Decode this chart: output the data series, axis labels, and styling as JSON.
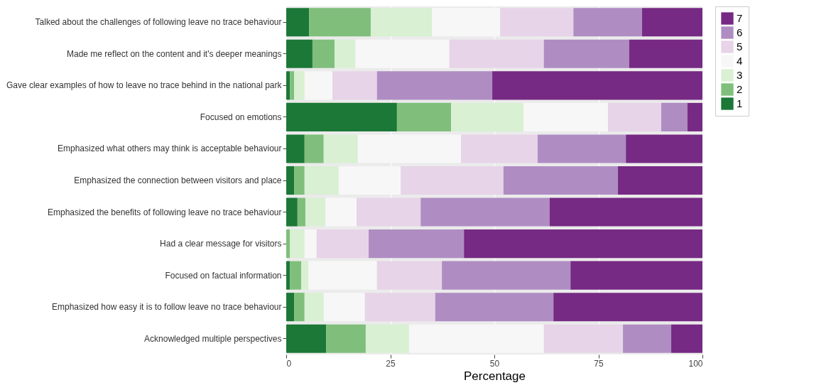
{
  "chart_data": {
    "type": "bar",
    "orientation": "horizontal",
    "stacked": true,
    "xlabel": "Percentage",
    "categories": [
      "Talked about the challenges of following leave no trace behaviour",
      "Made me reflect on the content and it's deeper meanings",
      "Gave clear examples of how to leave no trace behind in the national park",
      "Focused on emotions",
      "Emphasized what others may think is acceptable behaviour",
      "Emphasized the connection between visitors and place",
      "Emphasized the benefits of following leave no trace behaviour",
      "Had a clear message for visitors",
      "Focused on factual information",
      "Emphasized how easy it is to follow leave no trace behaviour",
      "Acknowledged multiple perspectives"
    ],
    "series": [
      {
        "name": "1",
        "color": "#1b7837",
        "values": [
          5.5,
          6.3,
          0.9,
          26.6,
          4.4,
          1.9,
          2.7,
          0,
          0.9,
          1.9,
          9.6
        ]
      },
      {
        "name": "2",
        "color": "#7fbf7b",
        "values": [
          14.8,
          5.3,
          1.0,
          13.0,
          4.6,
          2.5,
          1.9,
          0.9,
          2.7,
          2.5,
          9.5
        ]
      },
      {
        "name": "3",
        "color": "#d9f0d3",
        "values": [
          14.7,
          5.0,
          2.5,
          17.4,
          8.2,
          8.2,
          4.8,
          3.5,
          1.7,
          4.6,
          10.4
        ]
      },
      {
        "name": "4",
        "color": "#f7f7f7",
        "values": [
          16.4,
          22.6,
          6.7,
          20.3,
          24.8,
          14.9,
          7.5,
          2.9,
          16.5,
          9.9,
          32.4
        ]
      },
      {
        "name": "5",
        "color": "#e7d4e8",
        "values": [
          17.6,
          22.7,
          10.7,
          12.8,
          18.4,
          24.7,
          15.4,
          12.5,
          15.6,
          16.9,
          19.0
        ]
      },
      {
        "name": "6",
        "color": "#af8dc3",
        "values": [
          16.5,
          20.5,
          27.7,
          6.3,
          21.2,
          27.5,
          31.0,
          22.9,
          30.9,
          28.4,
          11.6
        ]
      },
      {
        "name": "7",
        "color": "#762a83",
        "values": [
          14.5,
          17.6,
          50.5,
          3.6,
          18.4,
          20.3,
          36.7,
          57.3,
          31.7,
          35.8,
          7.5
        ]
      }
    ],
    "xlim": [
      0,
      100
    ],
    "xticks": [
      0,
      25,
      50,
      75,
      100
    ],
    "grid": "x",
    "legend": "right"
  }
}
